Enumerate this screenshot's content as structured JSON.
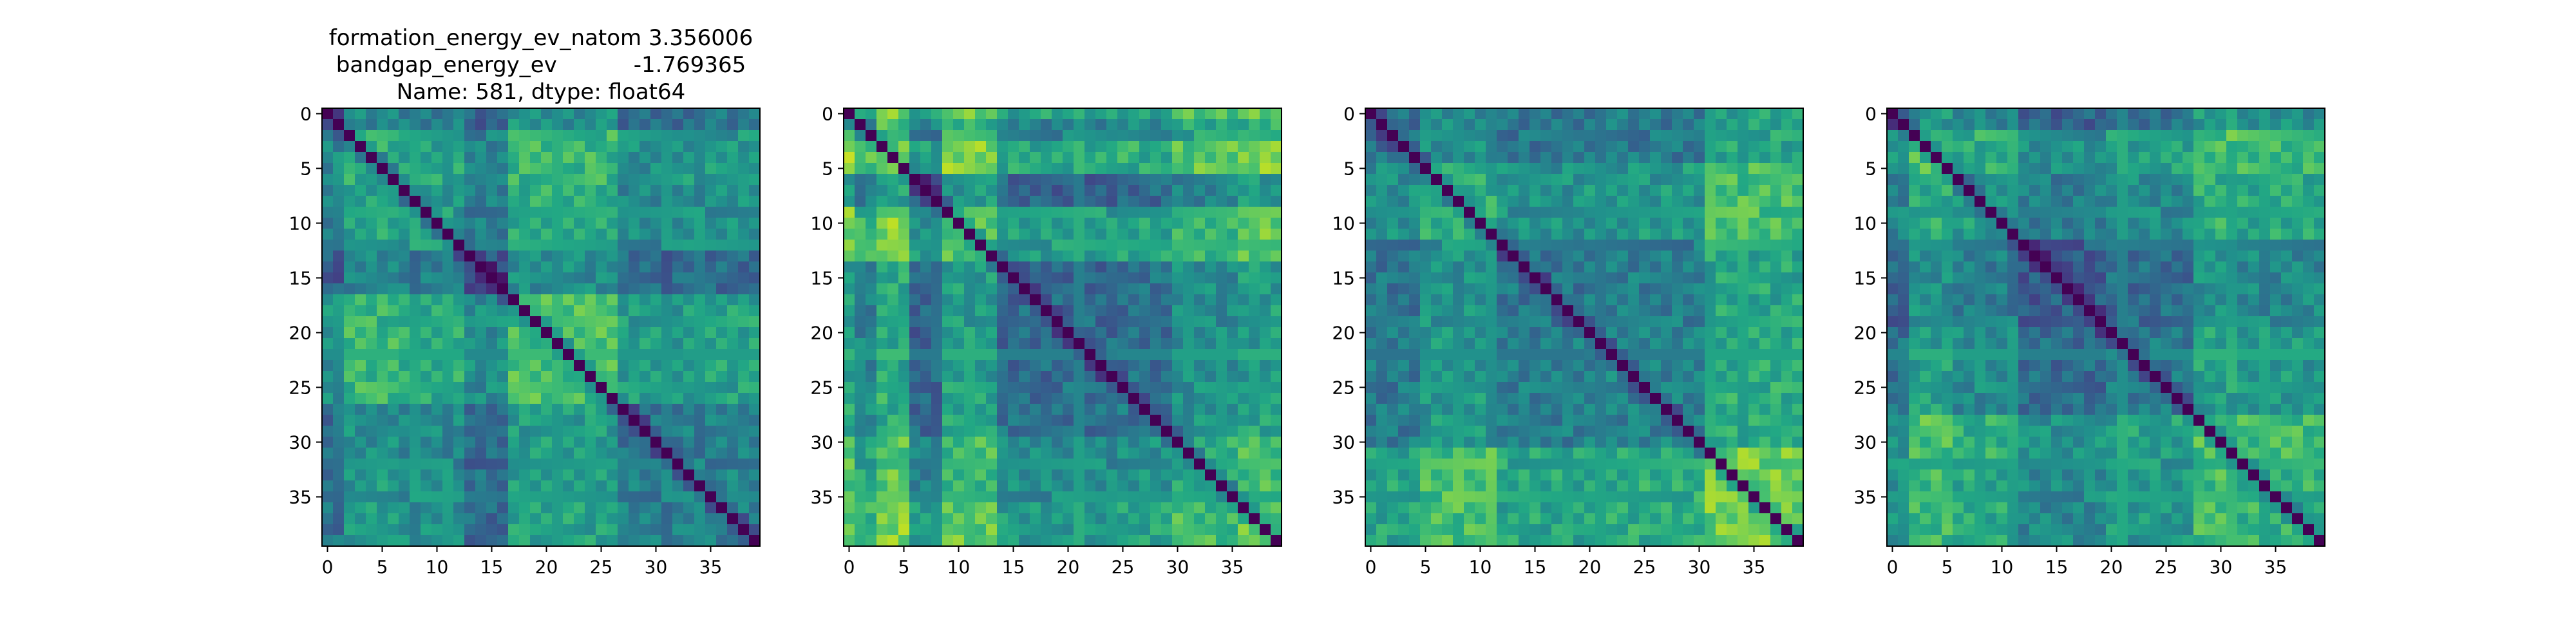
{
  "figure": {
    "title_lines": [
      "formation_energy_ev_natom    3.356006",
      "bandgap_energy_ev           -1.769365",
      "Name: 581, dtype: float64"
    ]
  },
  "chart_data": [
    {
      "type": "heatmap",
      "colormap": "viridis",
      "title": "",
      "xlabel": "",
      "ylabel": "",
      "size": 40,
      "xlim": [
        -0.5,
        39.5
      ],
      "ylim": [
        39.5,
        -0.5
      ],
      "xticks": [
        0,
        5,
        10,
        15,
        20,
        25,
        30,
        35
      ],
      "yticks": [
        0,
        5,
        10,
        15,
        20,
        25,
        30,
        35
      ],
      "grid": false,
      "diagonal": 0.0,
      "groups": [
        {
          "start": 0,
          "end": 2,
          "level": 0.32
        },
        {
          "start": 2,
          "end": 7,
          "level": 0.62
        },
        {
          "start": 7,
          "end": 13,
          "level": 0.55
        },
        {
          "start": 13,
          "end": 17,
          "level": 0.28
        },
        {
          "start": 17,
          "end": 27,
          "level": 0.7
        },
        {
          "start": 27,
          "end": 33,
          "level": 0.4
        },
        {
          "start": 33,
          "end": 40,
          "level": 0.45
        }
      ]
    },
    {
      "type": "heatmap",
      "colormap": "viridis",
      "title": "",
      "xlabel": "",
      "ylabel": "",
      "size": 40,
      "xlim": [
        -0.5,
        39.5
      ],
      "ylim": [
        39.5,
        -0.5
      ],
      "xticks": [
        0,
        5,
        10,
        15,
        20,
        25,
        30,
        35
      ],
      "yticks": [
        0,
        5,
        10,
        15,
        20,
        25,
        30,
        35
      ],
      "grid": false,
      "diagonal": 0.0,
      "groups": [
        {
          "start": 0,
          "end": 1,
          "level": 0.8
        },
        {
          "start": 1,
          "end": 3,
          "level": 0.55
        },
        {
          "start": 3,
          "end": 6,
          "level": 0.85
        },
        {
          "start": 6,
          "end": 9,
          "level": 0.3
        },
        {
          "start": 9,
          "end": 14,
          "level": 0.75
        },
        {
          "start": 14,
          "end": 25,
          "level": 0.35
        },
        {
          "start": 25,
          "end": 30,
          "level": 0.4
        },
        {
          "start": 30,
          "end": 36,
          "level": 0.62
        },
        {
          "start": 36,
          "end": 40,
          "level": 0.75
        }
      ]
    },
    {
      "type": "heatmap",
      "colormap": "viridis",
      "title": "",
      "xlabel": "",
      "ylabel": "",
      "size": 40,
      "xlim": [
        -0.5,
        39.5
      ],
      "ylim": [
        39.5,
        -0.5
      ],
      "xticks": [
        0,
        5,
        10,
        15,
        20,
        25,
        30,
        35
      ],
      "yticks": [
        0,
        5,
        10,
        15,
        20,
        25,
        30,
        35
      ],
      "grid": false,
      "diagonal": 0.0,
      "groups": [
        {
          "start": 0,
          "end": 5,
          "level": 0.38
        },
        {
          "start": 5,
          "end": 12,
          "level": 0.62
        },
        {
          "start": 12,
          "end": 20,
          "level": 0.4
        },
        {
          "start": 20,
          "end": 31,
          "level": 0.45
        },
        {
          "start": 31,
          "end": 40,
          "level": 0.78
        }
      ]
    },
    {
      "type": "heatmap",
      "colormap": "viridis",
      "title": "",
      "xlabel": "",
      "ylabel": "",
      "size": 40,
      "xlim": [
        -0.5,
        39.5
      ],
      "ylim": [
        39.5,
        -0.5
      ],
      "xticks": [
        0,
        5,
        10,
        15,
        20,
        25,
        30,
        35
      ],
      "yticks": [
        0,
        5,
        10,
        15,
        20,
        25,
        30,
        35
      ],
      "grid": false,
      "diagonal": 0.0,
      "groups": [
        {
          "start": 0,
          "end": 2,
          "level": 0.35
        },
        {
          "start": 2,
          "end": 6,
          "level": 0.7
        },
        {
          "start": 6,
          "end": 12,
          "level": 0.55
        },
        {
          "start": 12,
          "end": 20,
          "level": 0.3
        },
        {
          "start": 20,
          "end": 28,
          "level": 0.42
        },
        {
          "start": 28,
          "end": 32,
          "level": 0.72
        },
        {
          "start": 32,
          "end": 40,
          "level": 0.65
        }
      ]
    }
  ]
}
